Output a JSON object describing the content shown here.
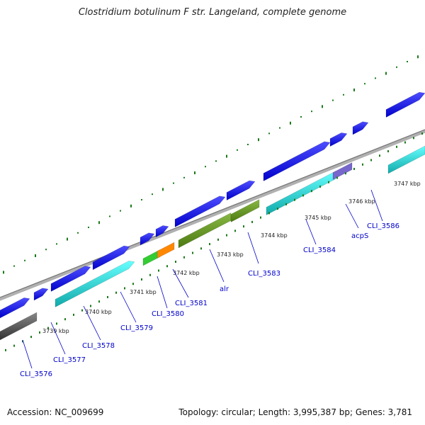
{
  "title": "Clostridium botulinum F str. Langeland, complete genome",
  "footer": {
    "accession": "Accession: NC_009699",
    "topology": "Topology: circular; Length: 3,995,387 bp; Genes: 3,781"
  },
  "colors": {
    "cds": "#0000ee",
    "cyan": "#22d8d8",
    "olive": "#6b9a22",
    "green": "#33cc33",
    "orange": "#ff8800",
    "purple": "#7766cc",
    "gray": "#555555",
    "backbone": "#999999",
    "ticks": "#1a7a1a",
    "label": "#0000cc"
  },
  "ruler": [
    "3739 kbp",
    "3740 kbp",
    "3741 kbp",
    "3742 kbp",
    "3743 kbp",
    "3744 kbp",
    "3745 kbp",
    "3746 kbp",
    "3747 kbp"
  ],
  "gene_labels": [
    "CLI_3576",
    "CLI_3577",
    "CLI_3578",
    "CLI_3579",
    "CLI_3580",
    "CLI_3581",
    "alr",
    "CLI_3583",
    "CLI_3584",
    "acpS",
    "CLI_3586"
  ]
}
